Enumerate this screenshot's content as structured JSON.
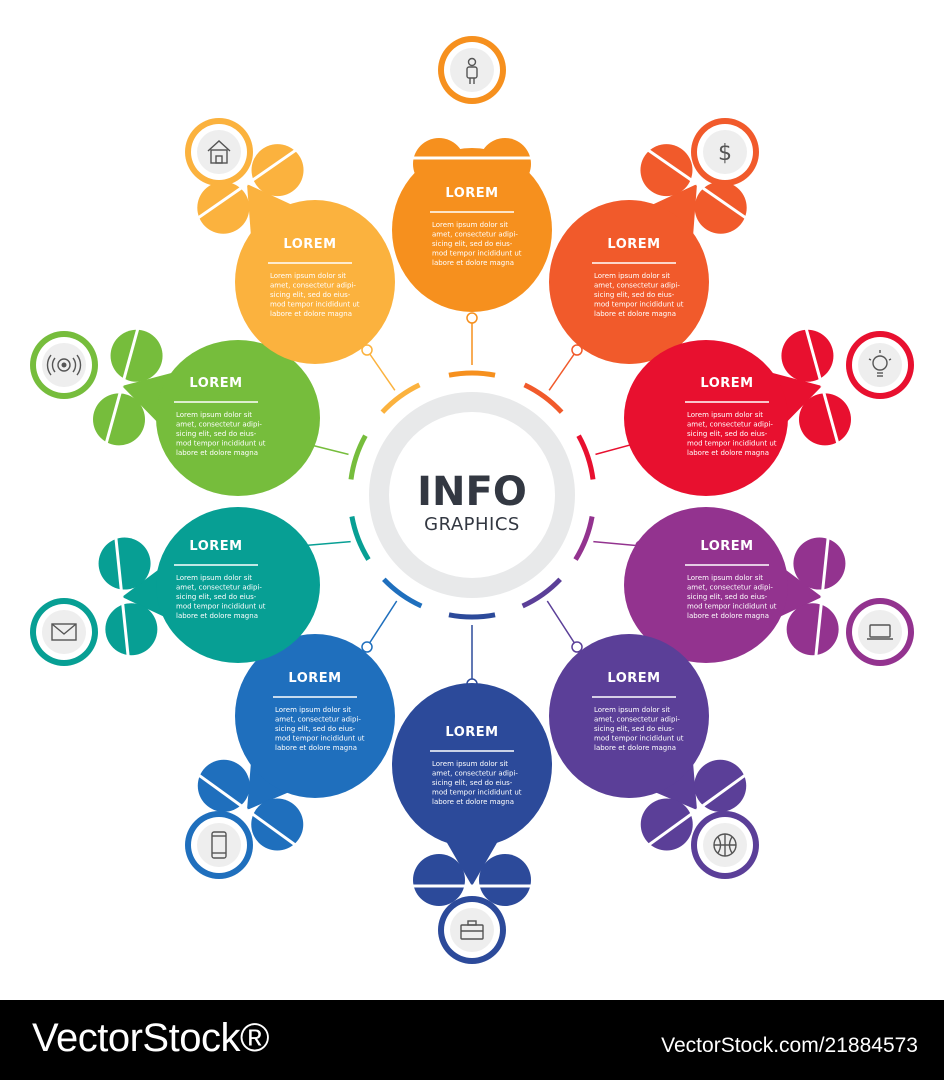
{
  "center": {
    "title": "INFO",
    "subtitle": "GRAPHICS"
  },
  "petals": [
    {
      "color": "#f6901e",
      "icon": "person-icon",
      "title": "LOREM",
      "lines": [
        "Lorem ipsum dolor sit",
        "amet, consectetur adipi-",
        "sicing elit, sed do eius-",
        "mod tempor incididunt ut",
        "labore et dolore magna"
      ]
    },
    {
      "color": "#f15a2b",
      "icon": "dollar-icon",
      "title": "LOREM",
      "lines": [
        "Lorem ipsum dolor sit",
        "amet, consectetur adipi-",
        "sicing elit, sed do eius-",
        "mod tempor incididunt ut",
        "labore et dolore magna"
      ]
    },
    {
      "color": "#e8102f",
      "icon": "lightbulb-icon",
      "title": "LOREM",
      "lines": [
        "Lorem ipsum dolor sit",
        "amet, consectetur adipi-",
        "sicing elit, sed do eius-",
        "mod tempor incididunt ut",
        "labore et dolore magna"
      ]
    },
    {
      "color": "#93338f",
      "icon": "laptop-icon",
      "title": "LOREM",
      "lines": [
        "Lorem ipsum dolor sit",
        "amet, consectetur adipi-",
        "sicing elit, sed do eius-",
        "mod tempor incididunt ut",
        "labore et dolore magna"
      ]
    },
    {
      "color": "#5b3f98",
      "icon": "basketball-icon",
      "title": "LOREM",
      "lines": [
        "Lorem ipsum dolor sit",
        "amet, consectetur adipi-",
        "sicing elit, sed do eius-",
        "mod tempor incididunt ut",
        "labore et dolore magna"
      ]
    },
    {
      "color": "#2c4a9a",
      "icon": "briefcase-icon",
      "title": "LOREM",
      "lines": [
        "Lorem ipsum dolor sit",
        "amet, consectetur adipi-",
        "sicing elit, sed do eius-",
        "mod tempor incididunt ut",
        "labore et dolore magna"
      ]
    },
    {
      "color": "#1f6fbd",
      "icon": "smartphone-icon",
      "title": "LOREM",
      "lines": [
        "Lorem ipsum dolor sit",
        "amet, consectetur adipi-",
        "sicing elit, sed do eius-",
        "mod tempor incididunt ut",
        "labore et dolore magna"
      ]
    },
    {
      "color": "#079f94",
      "icon": "envelope-icon",
      "title": "LOREM",
      "lines": [
        "Lorem ipsum dolor sit",
        "amet, consectetur adipi-",
        "sicing elit, sed do eius-",
        "mod tempor incididunt ut",
        "labore et dolore magna"
      ]
    },
    {
      "color": "#76bd3c",
      "icon": "wireless-signal-icon",
      "title": "LOREM",
      "lines": [
        "Lorem ipsum dolor sit",
        "amet, consectetur adipi-",
        "sicing elit, sed do eius-",
        "mod tempor incididunt ut",
        "labore et dolore magna"
      ]
    },
    {
      "color": "#fbb23e",
      "icon": "house-icon",
      "title": "LOREM",
      "lines": [
        "Lorem ipsum dolor sit",
        "amet, consectetur adipi-",
        "sicing elit, sed do eius-",
        "mod tempor incididunt ut",
        "labore et dolore magna"
      ]
    }
  ],
  "footer": {
    "brand": "VectorStock®",
    "image_id": "VectorStock.com/21884573"
  }
}
